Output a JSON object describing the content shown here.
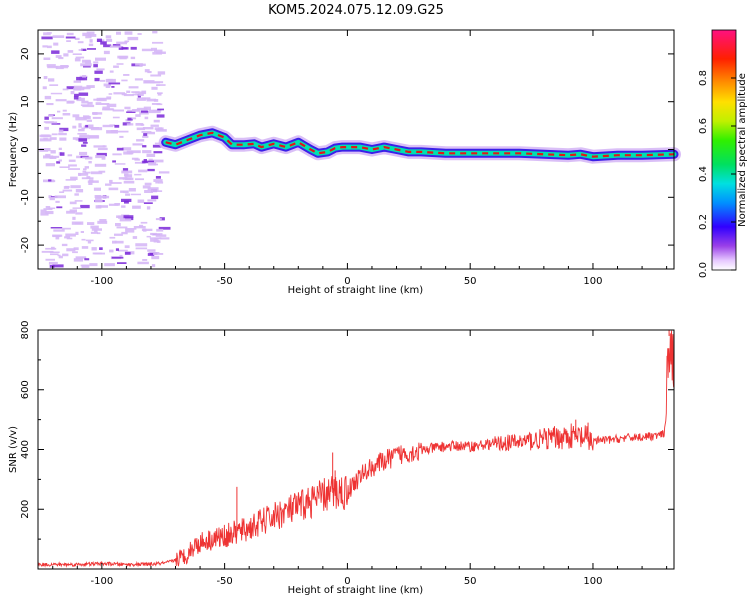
{
  "title": "KOM5.2024.075.12.09.G25",
  "colors": {
    "snr_line": "#ee3333",
    "ridge_core": "#e01818",
    "ridge_mid": "#00e0b0",
    "ridge_outer": "#3a20e8",
    "noise_light": "#d6b8f6",
    "noise_dark": "#7a28d8"
  },
  "chart_data": [
    {
      "type": "heatmap",
      "title": "KOM5.2024.075.12.09.G25",
      "xlabel": "Height of straight line (km)",
      "ylabel": "Frequency (Hz)",
      "xlim": [
        -126,
        133
      ],
      "ylim": [
        -25,
        25
      ],
      "xticks": [
        -100,
        -50,
        0,
        50,
        100
      ],
      "yticks": [
        -20,
        -10,
        0,
        10,
        20
      ],
      "xtick_labels": [
        "-100",
        "-50",
        "0",
        "50",
        "100"
      ],
      "ytick_labels": [
        "-20",
        "-10",
        "0",
        "10",
        "20"
      ],
      "colorbar": {
        "label": "Normalized spectral amplitude",
        "range": [
          0.0,
          1.0
        ],
        "ticks": [
          0.0,
          0.2,
          0.4,
          0.6,
          0.8
        ],
        "tick_labels": [
          "0.0",
          "0.2",
          "0.4",
          "0.6",
          "0.8"
        ],
        "colormap": "rainbow"
      },
      "ridge": {
        "x": [
          -74,
          -70,
          -65,
          -60,
          -55,
          -50,
          -47,
          -42,
          -38,
          -35,
          -30,
          -25,
          -20,
          -15,
          -12,
          -8,
          -5,
          -2,
          0,
          5,
          10,
          15,
          20,
          25,
          30,
          40,
          50,
          60,
          70,
          80,
          90,
          95,
          100,
          110,
          120,
          133
        ],
        "y": [
          1.5,
          1.0,
          2.0,
          3.0,
          3.5,
          2.5,
          1.0,
          1.0,
          1.2,
          0.5,
          1.2,
          0.5,
          1.5,
          0.0,
          -0.8,
          -0.5,
          0.3,
          0.5,
          0.5,
          0.5,
          0.0,
          0.5,
          0.0,
          -0.5,
          -0.5,
          -0.8,
          -0.8,
          -0.8,
          -0.8,
          -1.0,
          -1.2,
          -1.0,
          -1.5,
          -1.2,
          -1.2,
          -1.0
        ]
      },
      "noise_region_x": [
        -126,
        -74
      ]
    },
    {
      "type": "line",
      "xlabel": "Height of straight line (km)",
      "ylabel": "SNR (v/v)",
      "xlim": [
        -126,
        133
      ],
      "ylim": [
        0,
        800
      ],
      "xticks": [
        -100,
        -50,
        0,
        50,
        100
      ],
      "yticks": [
        200,
        400,
        600,
        800
      ],
      "xtick_labels": [
        "-100",
        "-50",
        "0",
        "50",
        "100"
      ],
      "ytick_labels": [
        "200",
        "400",
        "600",
        "800"
      ],
      "series": [
        {
          "x": [
            -126,
            -110,
            -100,
            -90,
            -80,
            -74,
            -70,
            -66,
            -62,
            -58,
            -55,
            -50,
            -46,
            -42,
            -38,
            -34,
            -30,
            -26,
            -22,
            -18,
            -14,
            -10,
            -6,
            -3,
            -1,
            1,
            4,
            8,
            12,
            16,
            20,
            25,
            30,
            35,
            40,
            45,
            50,
            55,
            60,
            65,
            70,
            75,
            80,
            85,
            90,
            95,
            98,
            102,
            106,
            110,
            115,
            120,
            125,
            129,
            130,
            131,
            132,
            133
          ],
          "y": [
            15,
            15,
            18,
            15,
            16,
            20,
            30,
            45,
            80,
            95,
            100,
            110,
            120,
            130,
            145,
            160,
            175,
            190,
            200,
            215,
            230,
            245,
            255,
            260,
            255,
            270,
            300,
            330,
            350,
            365,
            380,
            390,
            395,
            405,
            410,
            412,
            410,
            415,
            420,
            422,
            425,
            430,
            435,
            440,
            445,
            440,
            430,
            430,
            432,
            435,
            440,
            442,
            445,
            450,
            520,
            780,
            720,
            700
          ]
        }
      ],
      "spikes": [
        {
          "x": -45,
          "y": 275
        },
        {
          "x": -6,
          "y": 390
        },
        {
          "x": -5,
          "y": 330
        },
        {
          "x": 93,
          "y": 500
        },
        {
          "x": 98,
          "y": 490
        },
        {
          "x": 131,
          "y": 800
        }
      ]
    }
  ]
}
